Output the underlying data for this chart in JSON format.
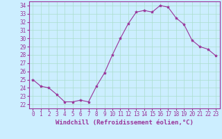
{
  "x": [
    0,
    1,
    2,
    3,
    4,
    5,
    6,
    7,
    8,
    9,
    10,
    11,
    12,
    13,
    14,
    15,
    16,
    17,
    18,
    19,
    20,
    21,
    22,
    23
  ],
  "y": [
    25.0,
    24.2,
    24.0,
    23.2,
    22.3,
    22.3,
    22.5,
    22.3,
    24.2,
    25.8,
    28.0,
    30.0,
    31.8,
    33.2,
    33.4,
    33.2,
    34.0,
    33.8,
    32.5,
    31.7,
    29.8,
    29.0,
    28.7,
    27.9
  ],
  "line_color": "#993399",
  "marker": "*",
  "marker_size": 3,
  "bg_color": "#cceeff",
  "grid_color": "#aaddcc",
  "xlabel": "Windchill (Refroidissement éolien,°C)",
  "xlim": [
    -0.5,
    23.5
  ],
  "ylim": [
    21.5,
    34.5
  ],
  "yticks": [
    22,
    23,
    24,
    25,
    26,
    27,
    28,
    29,
    30,
    31,
    32,
    33,
    34
  ],
  "xticks": [
    0,
    1,
    2,
    3,
    4,
    5,
    6,
    7,
    8,
    9,
    10,
    11,
    12,
    13,
    14,
    15,
    16,
    17,
    18,
    19,
    20,
    21,
    22,
    23
  ],
  "tick_label_fontsize": 5.5,
  "xlabel_fontsize": 6.5
}
